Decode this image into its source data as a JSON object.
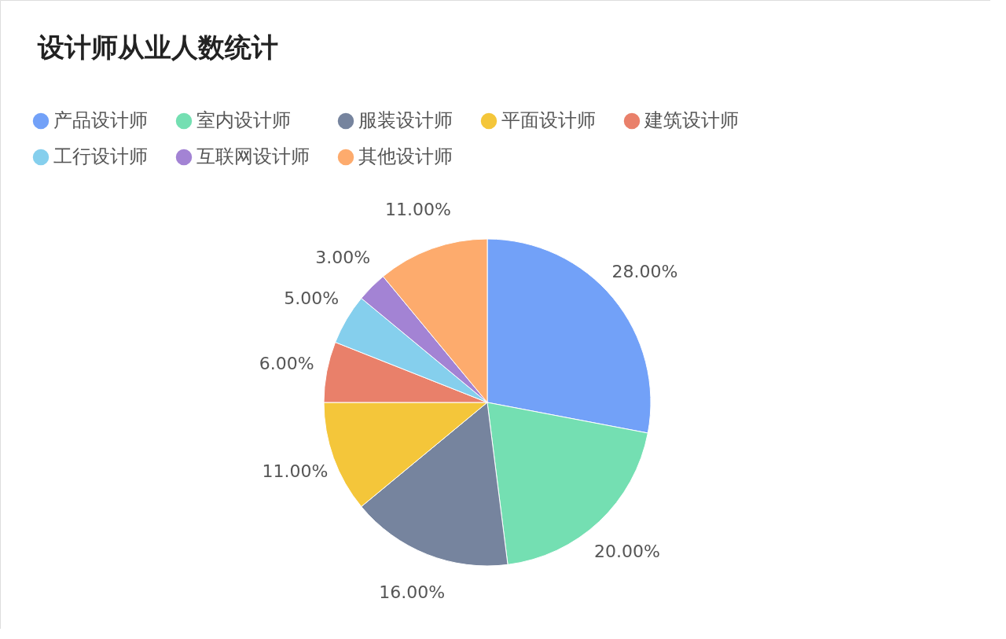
{
  "chart_data": {
    "type": "pie",
    "title": "设计师从业人数统计",
    "categories": [
      "产品设计师",
      "室内设计师",
      "服装设计师",
      "平面设计师",
      "建筑设计师",
      "工行设计师",
      "互联网设计师",
      "其他设计师"
    ],
    "values": [
      28,
      20,
      16,
      11,
      6,
      5,
      3,
      11
    ],
    "value_labels": [
      "28.00%",
      "20.00%",
      "16.00%",
      "11.00%",
      "6.00%",
      "5.00%",
      "3.00%",
      "11.00%"
    ],
    "colors": [
      "#72a1f8",
      "#74dfb2",
      "#76849e",
      "#f4c63a",
      "#e9806a",
      "#85cfed",
      "#a383d4",
      "#fdab6d"
    ],
    "legend": "top left"
  }
}
